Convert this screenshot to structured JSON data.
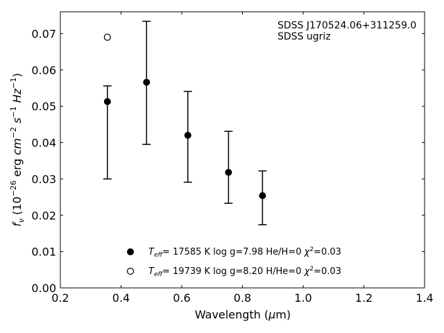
{
  "chart_data": {
    "type": "scatter",
    "annotation": [
      "SDSS J170524.06+311259.0",
      "SDSS ugriz"
    ],
    "xlabel": "Wavelength (μm)",
    "ylabel": "f_ν (10^-26 erg cm^-2 s^-1 Hz^-1)",
    "xlim": [
      0.2,
      1.4
    ],
    "ylim": [
      0.0,
      0.076
    ],
    "xticks": [
      "0.2",
      "0.4",
      "0.6",
      "0.8",
      "1.0",
      "1.2",
      "1.4"
    ],
    "yticks": [
      "0.00",
      "0.01",
      "0.02",
      "0.03",
      "0.04",
      "0.05",
      "0.06",
      "0.07"
    ],
    "grid": false,
    "tick_direction": "in",
    "legend_position": "bottom-center",
    "observed": {
      "marker": "filled-circle",
      "x": [
        0.355,
        0.484,
        0.62,
        0.754,
        0.866
      ],
      "y": [
        0.0513,
        0.0566,
        0.042,
        0.0318,
        0.0254
      ],
      "yerr_low": [
        0.03,
        0.0395,
        0.0291,
        0.0233,
        0.0174
      ],
      "yerr_high": [
        0.0556,
        0.0734,
        0.0541,
        0.0431,
        0.0322
      ]
    },
    "extra_points": {
      "marker": "open-circle",
      "x": [
        0.355
      ],
      "y": [
        0.069
      ]
    },
    "legend": [
      {
        "marker": "filled-circle",
        "teff": "17585 K",
        "logg": "log g=7.98",
        "comp": "He/H=0",
        "chi2": "=0.03"
      },
      {
        "marker": "open-circle",
        "teff": "19739 K",
        "logg": "log g=8.20",
        "comp": "H/He=0",
        "chi2": "=0.03"
      }
    ]
  }
}
